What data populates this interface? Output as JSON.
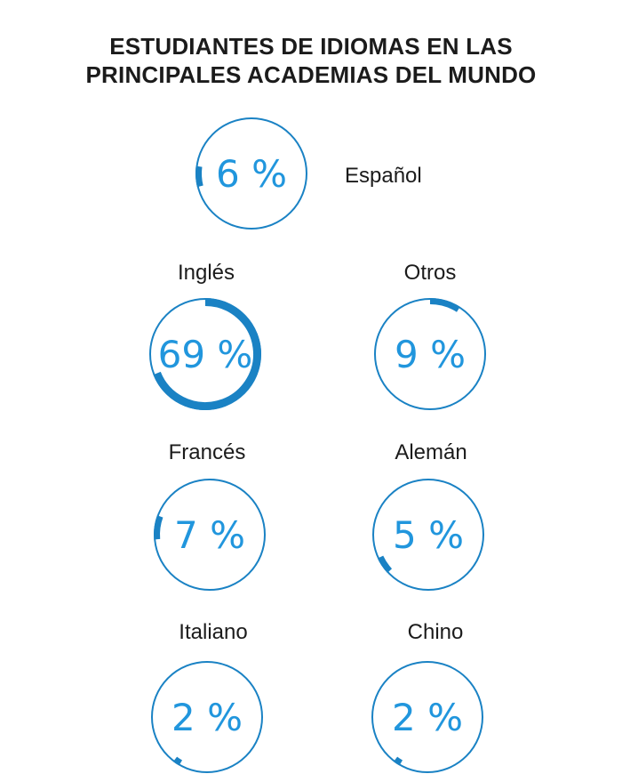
{
  "title_lines": [
    "ESTUDIANTES DE IDIOMAS EN LAS",
    "PRINCIPALES ACADEMIAS DEL MUNDO"
  ],
  "colors": {
    "accent": "#1a82c4",
    "percent_text": "#2196dd",
    "text": "#1b1b1b"
  },
  "chart_data": {
    "type": "pie",
    "title": "ESTUDIANTES DE IDIOMAS EN LAS PRINCIPALES ACADEMIAS DEL MUNDO",
    "unit": "%",
    "items": [
      {
        "name": "Español",
        "value": 6,
        "label": "6 %",
        "id": "espanol"
      },
      {
        "name": "Inglés",
        "value": 69,
        "label": "69 %",
        "id": "ingles"
      },
      {
        "name": "Otros",
        "value": 9,
        "label": "9 %",
        "id": "otros"
      },
      {
        "name": "Francés",
        "value": 7,
        "label": "7 %",
        "id": "frances"
      },
      {
        "name": "Alemán",
        "value": 5,
        "label": "5 %",
        "id": "aleman"
      },
      {
        "name": "Italiano",
        "value": 2,
        "label": "2 %",
        "id": "italiano"
      },
      {
        "name": "Chino",
        "value": 2,
        "label": "2 %",
        "id": "chino"
      }
    ]
  }
}
